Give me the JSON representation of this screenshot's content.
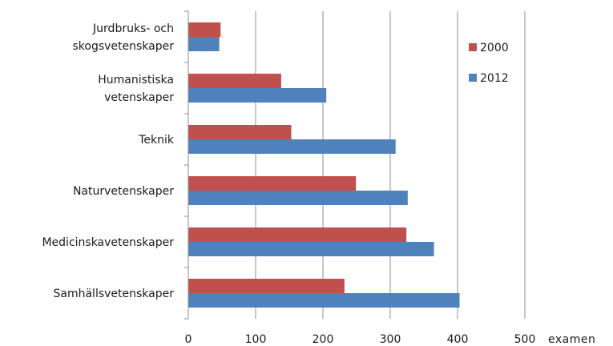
{
  "chart_data": {
    "type": "bar",
    "orientation": "horizontal",
    "title": "",
    "xlabel": "examen",
    "ylabel": "",
    "xlim": [
      0,
      500
    ],
    "xticks": [
      0,
      100,
      200,
      300,
      400,
      500
    ],
    "grid": "vertical",
    "legend_position": "right",
    "categories": [
      [
        "Jurdbruks- och",
        "skogsvetenskaper"
      ],
      [
        "Humanistiska",
        "vetenskaper"
      ],
      [
        "Teknik"
      ],
      [
        "Naturvetenskaper"
      ],
      [
        "Medicinskavetenskaper"
      ],
      [
        "Samhällsvetenskaper"
      ]
    ],
    "series": [
      {
        "name": "2000",
        "color": "#c0504d",
        "values": [
          48,
          138,
          153,
          249,
          324,
          232
        ]
      },
      {
        "name": "2012",
        "color": "#4f81bd",
        "values": [
          46,
          205,
          308,
          326,
          365,
          403
        ]
      }
    ]
  }
}
